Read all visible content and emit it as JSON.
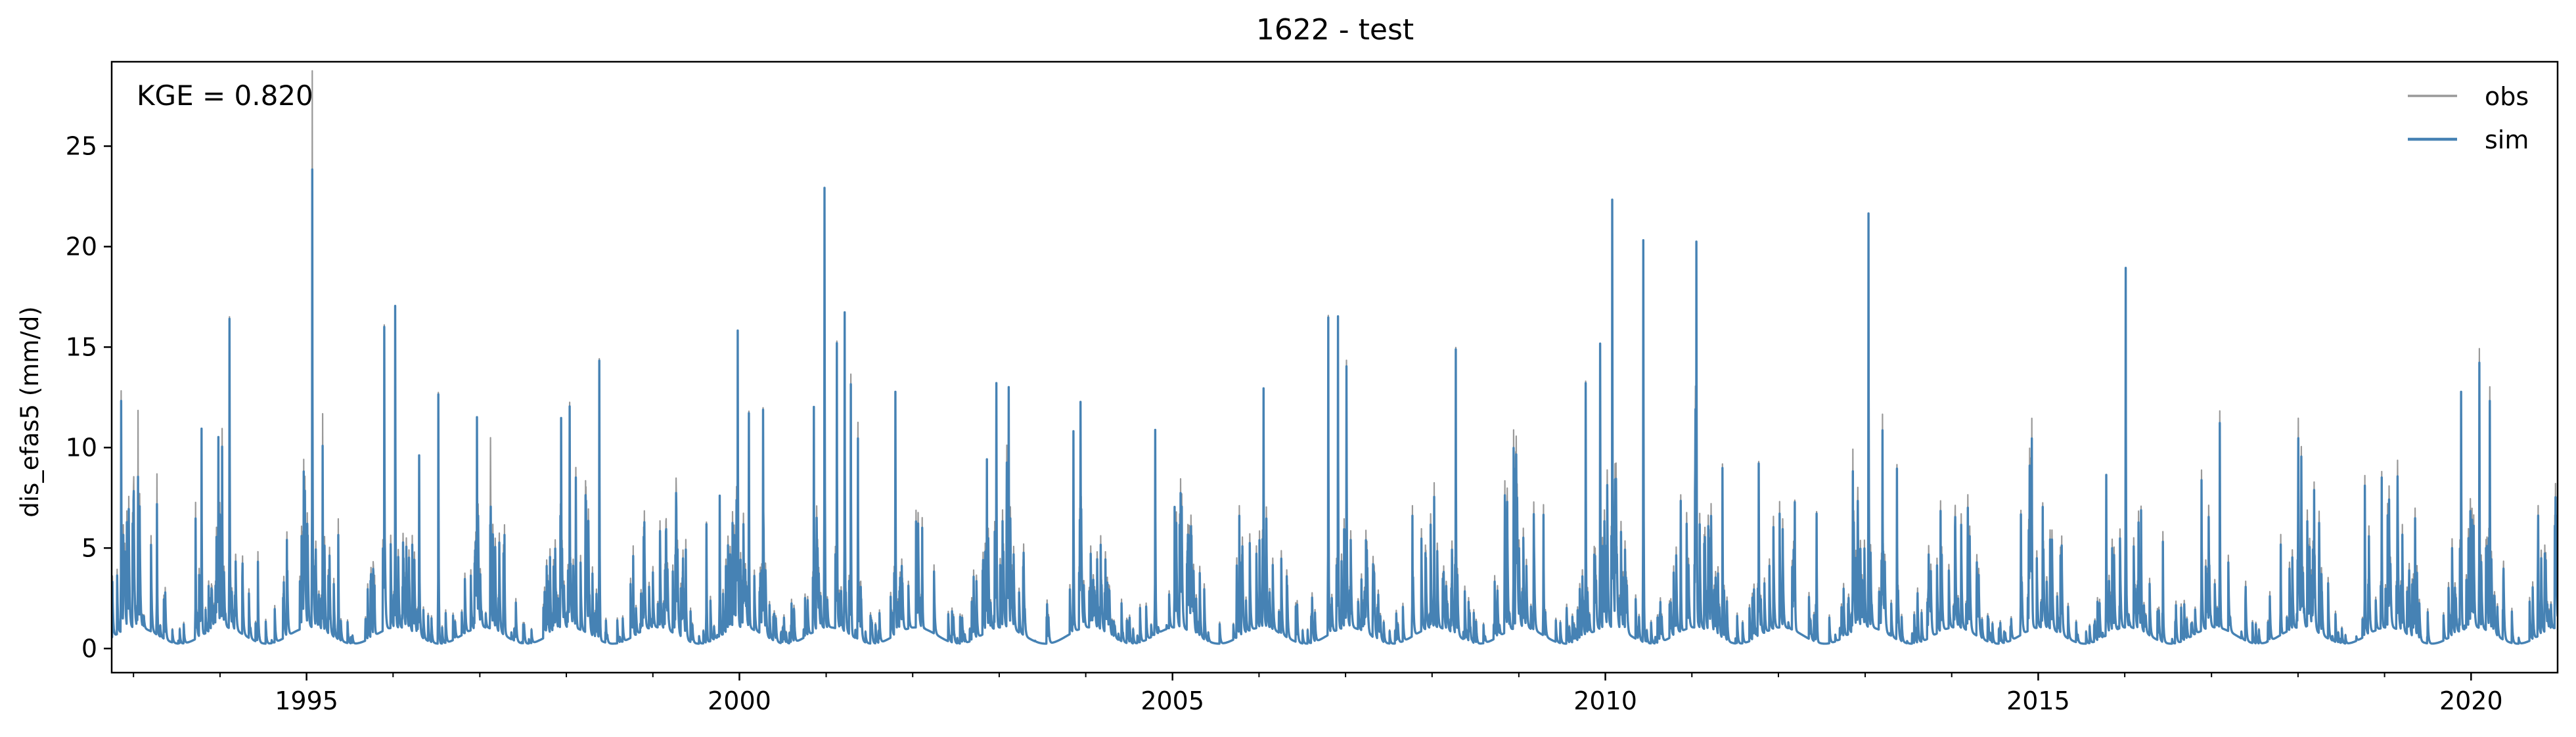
{
  "chart_data": {
    "type": "line",
    "title": "1622 - test",
    "xlabel": "",
    "ylabel": "dis_efas5 (mm/d)",
    "annotation": "KGE = 0.820",
    "xlim": [
      "1992-10-01",
      "2020-12-31"
    ],
    "ylim": [
      -1.2,
      29.2
    ],
    "x_ticks": [
      "1995",
      "2000",
      "2005",
      "2010",
      "2015",
      "2020"
    ],
    "y_ticks": [
      0,
      5,
      10,
      15,
      20,
      25
    ],
    "grid": false,
    "legend_position": "top-right",
    "series": [
      {
        "name": "obs",
        "color": "#999999",
        "peaks": [
          [
            "1992-11-10",
            12.0
          ],
          [
            "1993-01-20",
            10.8
          ],
          [
            "1993-04-10",
            8.0
          ],
          [
            "1993-09-20",
            6.8
          ],
          [
            "1993-10-15",
            10.2
          ],
          [
            "1993-12-25",
            9.5
          ],
          [
            "1994-01-10",
            9.9
          ],
          [
            "1994-02-10",
            15.5
          ],
          [
            "1994-06-10",
            4.5
          ],
          [
            "1994-10-10",
            5.2
          ],
          [
            "1994-12-20",
            8.4
          ],
          [
            "1995-01-25",
            27.7
          ],
          [
            "1995-03-10",
            10.8
          ],
          [
            "1995-05-15",
            6.0
          ],
          [
            "1995-10-15",
            3.0
          ],
          [
            "1995-11-25",
            15.2
          ],
          [
            "1996-01-10",
            16.0
          ],
          [
            "1996-04-20",
            9.0
          ],
          [
            "1996-07-10",
            12.5
          ],
          [
            "1996-12-20",
            10.5
          ],
          [
            "1997-02-15",
            9.5
          ],
          [
            "1997-04-15",
            5.5
          ],
          [
            "1997-10-10",
            3.8
          ],
          [
            "1997-12-10",
            10.5
          ],
          [
            "1998-01-15",
            11.2
          ],
          [
            "1998-02-10",
            8.0
          ],
          [
            "1998-05-20",
            14.0
          ],
          [
            "1998-10-10",
            4.5
          ],
          [
            "1999-05-20",
            5.0
          ],
          [
            "1999-08-15",
            6.0
          ],
          [
            "1999-10-10",
            7.0
          ],
          [
            "1999-12-25",
            14.8
          ],
          [
            "2000-02-10",
            10.8
          ],
          [
            "2000-04-10",
            11.3
          ],
          [
            "2000-11-10",
            11.2
          ],
          [
            "2000-12-25",
            21.9
          ],
          [
            "2001-02-15",
            14.3
          ],
          [
            "2001-03-20",
            15.9
          ],
          [
            "2001-04-15",
            13.0
          ],
          [
            "2001-05-15",
            10.8
          ],
          [
            "2001-10-20",
            12.1
          ],
          [
            "2002-02-10",
            5.5
          ],
          [
            "2002-11-10",
            8.6
          ],
          [
            "2002-12-20",
            12.2
          ],
          [
            "2003-02-10",
            12.0
          ],
          [
            "2003-11-10",
            10.0
          ],
          [
            "2003-12-10",
            11.3
          ],
          [
            "2004-10-20",
            10.2
          ],
          [
            "2005-01-10",
            6.0
          ],
          [
            "2005-10-10",
            6.5
          ],
          [
            "2006-01-20",
            11.9
          ],
          [
            "2006-10-20",
            15.9
          ],
          [
            "2006-11-30",
            15.6
          ],
          [
            "2007-01-05",
            13.3
          ],
          [
            "2007-10-10",
            6.5
          ],
          [
            "2008-01-10",
            7.2
          ],
          [
            "2008-04-10",
            14.3
          ],
          [
            "2008-12-10",
            9.9
          ],
          [
            "2009-04-15",
            6.5
          ],
          [
            "2009-10-10",
            12.7
          ],
          [
            "2009-12-10",
            14.2
          ],
          [
            "2010-01-30",
            21.3
          ],
          [
            "2010-06-10",
            20.0
          ],
          [
            "2010-11-15",
            6.8
          ],
          [
            "2011-01-20",
            19.2
          ],
          [
            "2011-05-10",
            8.7
          ],
          [
            "2011-10-10",
            8.7
          ],
          [
            "2012-03-10",
            6.5
          ],
          [
            "2012-06-10",
            6.5
          ],
          [
            "2012-11-10",
            9.1
          ],
          [
            "2013-01-15",
            20.6
          ],
          [
            "2013-03-15",
            10.8
          ],
          [
            "2013-05-15",
            8.7
          ],
          [
            "2013-11-15",
            6.5
          ],
          [
            "2014-01-15",
            5.5
          ],
          [
            "2014-10-20",
            6.2
          ],
          [
            "2014-12-05",
            10.5
          ],
          [
            "2015-01-20",
            6.2
          ],
          [
            "2015-10-15",
            8.0
          ],
          [
            "2016-01-05",
            17.9
          ],
          [
            "2016-03-10",
            6.2
          ],
          [
            "2016-06-10",
            5.5
          ],
          [
            "2016-11-20",
            8.0
          ],
          [
            "2017-02-05",
            10.8
          ],
          [
            "2017-10-20",
            5.0
          ],
          [
            "2018-01-15",
            9.0
          ],
          [
            "2018-03-10",
            7.4
          ],
          [
            "2018-10-10",
            8.0
          ],
          [
            "2018-12-20",
            7.8
          ],
          [
            "2019-05-10",
            6.5
          ],
          [
            "2019-11-20",
            11.5
          ],
          [
            "2020-02-05",
            13.9
          ],
          [
            "2020-03-20",
            12.2
          ],
          [
            "2020-10-10",
            6.5
          ]
        ]
      },
      {
        "name": "sim",
        "color": "#4682b4",
        "peaks": [
          [
            "1992-11-10",
            11.5
          ],
          [
            "1993-01-20",
            7.5
          ],
          [
            "1993-04-10",
            6.5
          ],
          [
            "1993-09-20",
            6.0
          ],
          [
            "1993-10-15",
            10.3
          ],
          [
            "1993-12-25",
            9.5
          ],
          [
            "1994-01-10",
            9.0
          ],
          [
            "1994-02-10",
            15.4
          ],
          [
            "1994-06-10",
            4.0
          ],
          [
            "1994-10-10",
            4.8
          ],
          [
            "1994-12-20",
            7.8
          ],
          [
            "1995-01-25",
            22.8
          ],
          [
            "1995-03-10",
            9.2
          ],
          [
            "1995-05-15",
            5.2
          ],
          [
            "1995-10-15",
            2.5
          ],
          [
            "1995-11-25",
            15.1
          ],
          [
            "1996-01-10",
            16.0
          ],
          [
            "1996-04-20",
            9.0
          ],
          [
            "1996-07-10",
            12.4
          ],
          [
            "1996-12-20",
            10.5
          ],
          [
            "1997-02-15",
            5.2
          ],
          [
            "1997-04-15",
            5.0
          ],
          [
            "1997-10-10",
            3.5
          ],
          [
            "1997-12-10",
            10.5
          ],
          [
            "1998-01-15",
            11.0
          ],
          [
            "1998-02-10",
            7.5
          ],
          [
            "1998-05-20",
            13.9
          ],
          [
            "1998-10-10",
            4.0
          ],
          [
            "1999-05-20",
            4.5
          ],
          [
            "1999-08-15",
            5.9
          ],
          [
            "1999-10-10",
            7.0
          ],
          [
            "1999-12-25",
            14.8
          ],
          [
            "2000-02-10",
            10.7
          ],
          [
            "2000-04-10",
            11.2
          ],
          [
            "2000-11-10",
            11.2
          ],
          [
            "2000-12-25",
            21.9
          ],
          [
            "2001-02-15",
            14.2
          ],
          [
            "2001-03-20",
            15.9
          ],
          [
            "2001-04-15",
            12.5
          ],
          [
            "2001-05-15",
            10.0
          ],
          [
            "2001-10-20",
            12.1
          ],
          [
            "2002-02-10",
            5.0
          ],
          [
            "2002-11-10",
            8.6
          ],
          [
            "2002-12-20",
            12.2
          ],
          [
            "2003-02-10",
            12.0
          ],
          [
            "2003-11-10",
            10.0
          ],
          [
            "2003-12-10",
            11.3
          ],
          [
            "2004-10-20",
            10.2
          ],
          [
            "2005-01-10",
            6.0
          ],
          [
            "2005-10-10",
            6.0
          ],
          [
            "2006-01-20",
            11.9
          ],
          [
            "2006-10-20",
            15.8
          ],
          [
            "2006-11-30",
            15.6
          ],
          [
            "2007-01-05",
            13.0
          ],
          [
            "2007-10-10",
            6.0
          ],
          [
            "2008-01-10",
            6.5
          ],
          [
            "2008-04-10",
            14.2
          ],
          [
            "2008-12-10",
            9.0
          ],
          [
            "2009-04-15",
            6.0
          ],
          [
            "2009-10-10",
            12.6
          ],
          [
            "2009-12-10",
            14.2
          ],
          [
            "2010-01-30",
            21.3
          ],
          [
            "2010-06-10",
            20.0
          ],
          [
            "2010-11-15",
            6.5
          ],
          [
            "2011-01-20",
            19.2
          ],
          [
            "2011-05-10",
            8.5
          ],
          [
            "2011-10-10",
            8.6
          ],
          [
            "2012-03-10",
            6.4
          ],
          [
            "2012-06-10",
            6.4
          ],
          [
            "2012-11-10",
            8.0
          ],
          [
            "2013-01-15",
            20.6
          ],
          [
            "2013-03-15",
            10.0
          ],
          [
            "2013-05-15",
            8.5
          ],
          [
            "2013-11-15",
            6.0
          ],
          [
            "2014-01-15",
            5.0
          ],
          [
            "2014-10-20",
            6.0
          ],
          [
            "2014-12-05",
            9.5
          ],
          [
            "2015-01-20",
            6.0
          ],
          [
            "2015-10-15",
            8.0
          ],
          [
            "2016-01-05",
            17.9
          ],
          [
            "2016-03-10",
            6.0
          ],
          [
            "2016-06-10",
            5.0
          ],
          [
            "2016-11-20",
            7.5
          ],
          [
            "2017-02-05",
            10.2
          ],
          [
            "2017-10-20",
            4.5
          ],
          [
            "2018-01-15",
            8.5
          ],
          [
            "2018-03-10",
            7.0
          ],
          [
            "2018-10-10",
            7.5
          ],
          [
            "2018-12-20",
            7.5
          ],
          [
            "2019-05-10",
            6.0
          ],
          [
            "2019-11-20",
            11.9
          ],
          [
            "2020-02-05",
            13.2
          ],
          [
            "2020-03-20",
            11.5
          ],
          [
            "2020-10-10",
            6.0
          ]
        ]
      }
    ]
  }
}
